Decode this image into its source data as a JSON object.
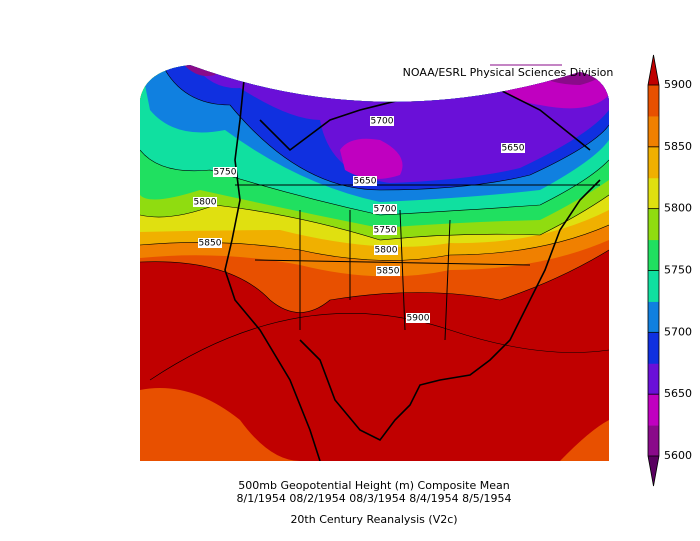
{
  "header": {
    "credit": "NOAA/ESRL Physical Sciences Division"
  },
  "contour_labels": [
    5700,
    5650,
    5650,
    5750,
    5800,
    5850,
    5700,
    5750,
    5800,
    5850,
    5900
  ],
  "colorbar": {
    "ticks": [
      5600,
      5650,
      5700,
      5750,
      5800,
      5850,
      5900
    ],
    "colors": [
      "#8a0a8a",
      "#c000c0",
      "#6a10d8",
      "#1030e0",
      "#1080e0",
      "#10e0a0",
      "#20e060",
      "#90dc10",
      "#e0e010",
      "#f0b000",
      "#f08000",
      "#e85000"
    ],
    "under_color": "#5a0060",
    "over_color": "#c00000"
  },
  "caption": [
    "500mb Geopotential Height (m) Composite Mean",
    "8/1/1954 08/2/1954 08/3/1954 8/4/1954 8/5/1954",
    "20th Century Reanalysis (V2c)"
  ]
}
